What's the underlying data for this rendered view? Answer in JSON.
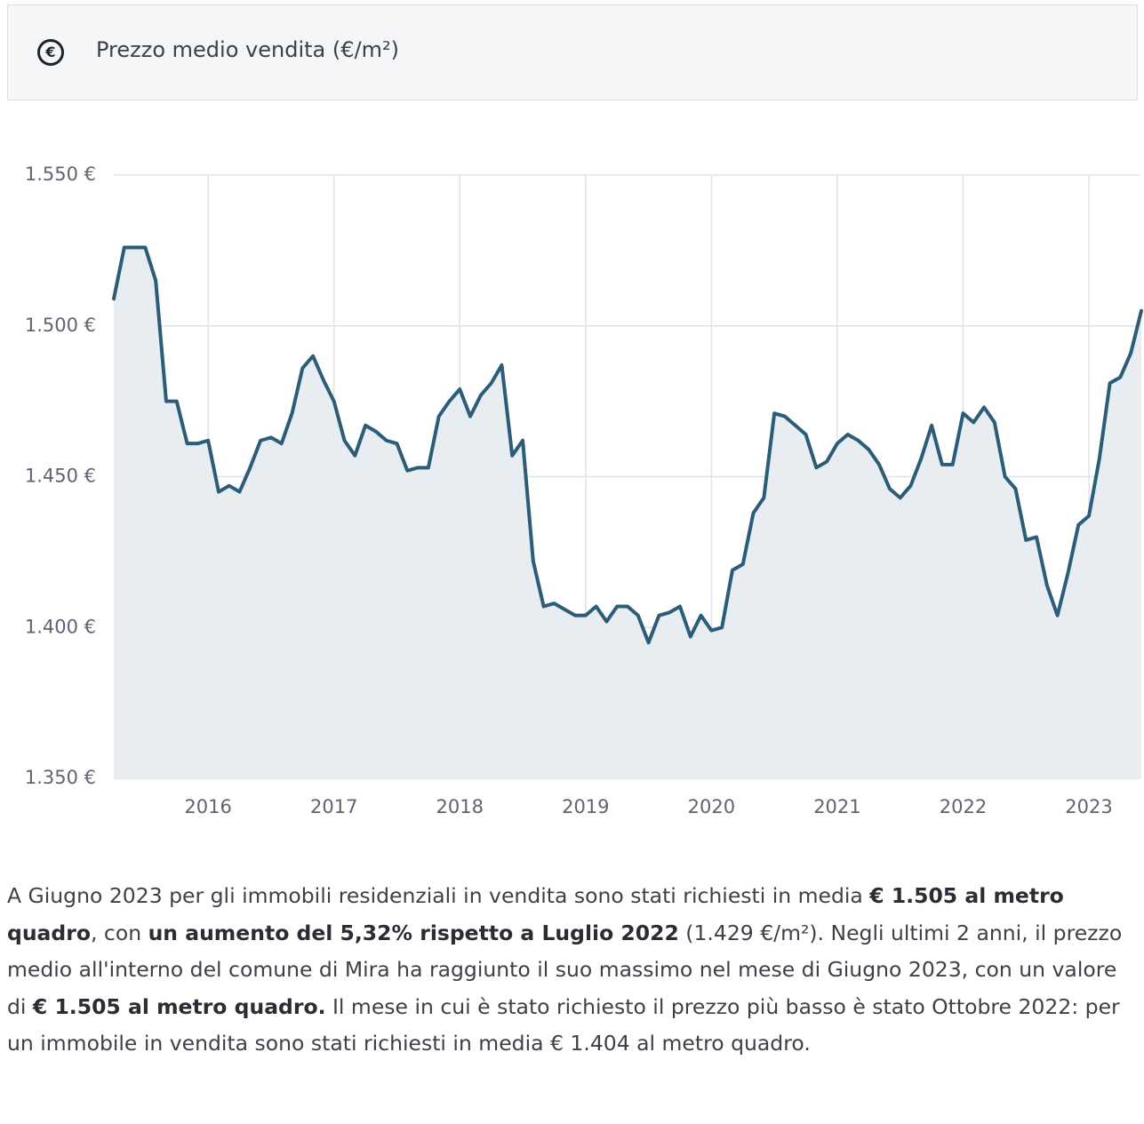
{
  "icon": "€",
  "chart_data": {
    "type": "area-line",
    "title": "Prezzo medio vendita (€/m²)",
    "categories": [
      null,
      null,
      null,
      null,
      null,
      null,
      null,
      null,
      null,
      "2016",
      null,
      null,
      null,
      null,
      null,
      null,
      null,
      null,
      null,
      null,
      null,
      "2017",
      null,
      null,
      null,
      null,
      null,
      null,
      null,
      null,
      null,
      null,
      null,
      "2018",
      null,
      null,
      null,
      null,
      null,
      null,
      null,
      null,
      null,
      null,
      null,
      "2019",
      null,
      null,
      null,
      null,
      null,
      null,
      null,
      null,
      null,
      null,
      null,
      "2020",
      null,
      null,
      null,
      null,
      null,
      null,
      null,
      null,
      null,
      null,
      null,
      "2021",
      null,
      null,
      null,
      null,
      null,
      null,
      null,
      null,
      null,
      null,
      null,
      "2022",
      null,
      null,
      null,
      null,
      null,
      null,
      null,
      null,
      null,
      null,
      null,
      "2023",
      null,
      null,
      null,
      null,
      null
    ],
    "series": [
      {
        "color": "#2b5d78",
        "fill": "#e8edf2",
        "values": [
          1509,
          1526,
          1526,
          1526,
          1515,
          1475,
          1475,
          1461,
          1461,
          1462,
          1445,
          1447,
          1445,
          1453,
          1462,
          1463,
          1461,
          1471,
          1486,
          1490,
          1482,
          1475,
          1462,
          1457,
          1467,
          1465,
          1462,
          1461,
          1452,
          1453,
          1453,
          1470,
          1475,
          1479,
          1470,
          1477,
          1481,
          1487,
          1457,
          1462,
          1422,
          1407,
          1408,
          1406,
          1404,
          1404,
          1407,
          1402,
          1407,
          1407,
          1404,
          1395,
          1404,
          1405,
          1407,
          1397,
          1404,
          1399,
          1400,
          1419,
          1421,
          1438,
          1443,
          1471,
          1470,
          1467,
          1464,
          1453,
          1455,
          1461,
          1464,
          1462,
          1459,
          1454,
          1446,
          1443,
          1447,
          1456,
          1467,
          1454,
          1454,
          1471,
          1468,
          1473,
          1468,
          1450,
          1446,
          1429,
          1430,
          1414,
          1404,
          1418,
          1434,
          1437,
          1456,
          1481,
          1483,
          1491,
          1505
        ]
      }
    ],
    "ylim": [
      1350,
      1550
    ],
    "yticks": [
      {
        "value": 1350,
        "label": "1.350 €"
      },
      {
        "value": 1400,
        "label": "1.400 €"
      },
      {
        "value": 1450,
        "label": "1.450 €"
      },
      {
        "value": 1500,
        "label": "1.500 €"
      },
      {
        "value": 1550,
        "label": "1.550 €"
      }
    ],
    "grid": true
  },
  "description": [
    {
      "text": "A Giugno 2023 per gli immobili residenziali in vendita sono stati richiesti in media ",
      "bold": false
    },
    {
      "text": "€ 1.505 al metro quadro",
      "bold": true
    },
    {
      "text": ", con ",
      "bold": false
    },
    {
      "text": "un aumento del 5,32% rispetto a Luglio 2022",
      "bold": true
    },
    {
      "text": " (1.429 €/m²). Negli ultimi 2 anni, il prezzo medio all'interno del comune di Mira ha raggiunto il suo massimo nel mese di Giugno 2023, con un valore di ",
      "bold": false
    },
    {
      "text": "€ 1.505 al metro quadro.",
      "bold": true
    },
    {
      "text": " Il mese in cui è stato richiesto il prezzo più basso è stato Ottobre 2022: per un immobile in vendita sono stati richiesti in media € 1.404 al metro quadro.",
      "bold": false
    }
  ]
}
